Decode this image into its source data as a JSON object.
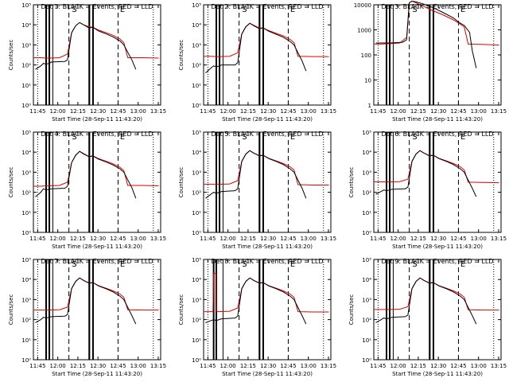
{
  "page": {
    "background": "#ffffff"
  },
  "colors": {
    "events": "#000000",
    "lld": "#e00000",
    "axes": "#000000"
  },
  "xaxis": {
    "label": "Start Time (28-Sep-11 11:43:20)",
    "ticks": [
      "11:45",
      "12:00",
      "12:15",
      "12:30",
      "12:45",
      "13:00",
      "13:15"
    ],
    "range_min": [
      -1.5,
      93.5
    ]
  },
  "markers": {
    "dotted_min": [
      1.7,
      88
    ],
    "thin_solid_min": [
      13,
      40.5
    ],
    "dashed_min": [
      25,
      61.7
    ],
    "labels": [
      {
        "text": "S",
        "min": 29
      },
      {
        "text": "E",
        "min": 65
      }
    ]
  },
  "chart_data": [
    {
      "type": "line",
      "panel": 1,
      "title": "Det 1: BLACK = Events, RED = LLD",
      "ylabel": "Counts/sec",
      "yscale": "log",
      "ylim": [
        1,
        100000
      ],
      "yticks": [
        "10⁰",
        "10¹",
        "10²",
        "10³",
        "10⁴",
        "10⁵"
      ],
      "gaps_min": [
        [
          8.0,
          10.4
        ],
        [
          40.2,
          43.0
        ]
      ],
      "series": [
        {
          "name": "Events",
          "color": "#000000",
          "x": [
            0,
            4,
            6,
            8,
            10.4,
            12,
            22,
            24,
            27,
            30,
            33,
            36,
            40,
            43,
            47,
            53,
            58,
            63,
            66,
            72,
            75
          ],
          "y": [
            60,
            90,
            120,
            110,
            120,
            140,
            150,
            180,
            4000,
            9000,
            13000,
            10000,
            7000,
            7500,
            5000,
            3500,
            2500,
            1600,
            1000,
            180,
            60
          ]
        },
        {
          "name": "LLD",
          "color": "#e00000",
          "x": [
            -1,
            4,
            8,
            10.4,
            18,
            24,
            27,
            30,
            33,
            36,
            40,
            43,
            47,
            53,
            58,
            63,
            66,
            69,
            80,
            92
          ],
          "y": [
            230,
            230,
            220,
            220,
            230,
            350,
            4000,
            9000,
            13000,
            10000,
            8000,
            7500,
            5500,
            4000,
            3000,
            2000,
            1300,
            230,
            230,
            220
          ]
        }
      ]
    },
    {
      "type": "line",
      "panel": 2,
      "title": "Det 2: BLACK = Events, RED = LLD",
      "ylabel": "Counts/sec",
      "yscale": "log",
      "ylim": [
        1,
        100000
      ],
      "yticks": [
        "10⁰",
        "10¹",
        "10²",
        "10³",
        "10⁴",
        "10⁵"
      ],
      "gaps_min": [
        [
          8.0,
          10.4
        ],
        [
          40.2,
          43.0
        ]
      ],
      "series": [
        {
          "name": "Events",
          "color": "#000000",
          "x": [
            0,
            4,
            6,
            8,
            10.4,
            12,
            22,
            24,
            27,
            30,
            33,
            36,
            40,
            43,
            47,
            53,
            58,
            63,
            66,
            72,
            75
          ],
          "y": [
            40,
            70,
            90,
            80,
            90,
            100,
            100,
            130,
            3500,
            8000,
            12000,
            9000,
            6500,
            7000,
            4800,
            3300,
            2400,
            1500,
            1000,
            160,
            50
          ]
        },
        {
          "name": "LLD",
          "color": "#e00000",
          "x": [
            -1,
            4,
            8,
            10.4,
            18,
            24,
            27,
            30,
            33,
            36,
            40,
            43,
            47,
            53,
            58,
            63,
            66,
            69,
            80,
            92
          ],
          "y": [
            270,
            270,
            260,
            260,
            270,
            400,
            3500,
            8000,
            12000,
            9500,
            7000,
            7000,
            5200,
            3700,
            2800,
            1900,
            1300,
            270,
            260,
            260
          ]
        }
      ]
    },
    {
      "type": "line",
      "panel": 3,
      "title": "Det 3: BLACK = Events, RED = LLD",
      "ylabel": "",
      "yscale": "log",
      "ylim": [
        1,
        10000
      ],
      "yticks": [
        "1",
        "10",
        "100",
        "1000",
        "10000"
      ],
      "gaps_min": [
        [
          8.0,
          10.4
        ],
        [
          40.2,
          43.0
        ]
      ],
      "series": [
        {
          "name": "Events",
          "color": "#000000",
          "x": [
            0,
            4,
            8,
            10.4,
            20,
            23,
            25,
            27,
            30,
            35,
            42,
            50,
            58,
            62,
            66,
            70,
            72,
            75
          ],
          "y": [
            300,
            300,
            300,
            300,
            320,
            400,
            12000,
            14000,
            13000,
            11000,
            8000,
            5000,
            3000,
            2000,
            1500,
            800,
            150,
            30
          ]
        },
        {
          "name": "LLD",
          "color": "#e00000",
          "x": [
            -1,
            4,
            8,
            10.4,
            18,
            23,
            25,
            27,
            30,
            35,
            42,
            50,
            58,
            63,
            66,
            69,
            80,
            92
          ],
          "y": [
            270,
            270,
            280,
            280,
            300,
            500,
            12000,
            14000,
            12000,
            9000,
            6000,
            4000,
            2500,
            1700,
            1300,
            270,
            260,
            250
          ]
        }
      ]
    },
    {
      "type": "line",
      "panel": 4,
      "title": "Det 4: BLACK = Events, RED = LLD",
      "ylabel": "Counts/sec",
      "yscale": "log",
      "ylim": [
        1,
        100000
      ],
      "yticks": [
        "10⁰",
        "10¹",
        "10²",
        "10³",
        "10⁴",
        "10⁵"
      ],
      "gaps_min": [
        [
          8.0,
          10.4
        ],
        [
          40.2,
          43.0
        ]
      ],
      "series": [
        {
          "name": "Events",
          "color": "#000000",
          "x": [
            0,
            4,
            6,
            8,
            10.4,
            12,
            22,
            24,
            27,
            30,
            33,
            36,
            40,
            43,
            47,
            53,
            58,
            63,
            66,
            72,
            75
          ],
          "y": [
            60,
            100,
            150,
            130,
            140,
            150,
            160,
            200,
            3000,
            7000,
            11000,
            8000,
            6000,
            6500,
            4500,
            3200,
            2300,
            1500,
            1000,
            170,
            50
          ]
        },
        {
          "name": "LLD",
          "color": "#e00000",
          "x": [
            -1,
            4,
            8,
            10.4,
            18,
            24,
            27,
            30,
            33,
            36,
            40,
            43,
            47,
            53,
            58,
            63,
            66,
            69,
            80,
            92
          ],
          "y": [
            200,
            200,
            210,
            210,
            220,
            320,
            3000,
            7000,
            11000,
            8500,
            6000,
            6500,
            4800,
            3500,
            2600,
            1800,
            1200,
            220,
            220,
            210
          ]
        }
      ]
    },
    {
      "type": "line",
      "panel": 5,
      "title": "Det 5: BLACK = Events, RED = LLD",
      "ylabel": "Counts/sec",
      "yscale": "log",
      "ylim": [
        1,
        100000
      ],
      "yticks": [
        "10⁰",
        "10¹",
        "10²",
        "10³",
        "10⁴",
        "10⁵"
      ],
      "gaps_min": [
        [
          8.0,
          10.4
        ],
        [
          40.2,
          43.0
        ]
      ],
      "series": [
        {
          "name": "Events",
          "color": "#000000",
          "x": [
            0,
            4,
            6,
            8,
            10.4,
            12,
            22,
            24,
            27,
            30,
            33,
            36,
            40,
            43,
            47,
            53,
            58,
            63,
            66,
            72,
            75
          ],
          "y": [
            50,
            80,
            100,
            90,
            100,
            110,
            120,
            150,
            3500,
            8000,
            12000,
            9000,
            6500,
            7000,
            4800,
            3400,
            2400,
            1500,
            1000,
            160,
            50
          ]
        },
        {
          "name": "LLD",
          "color": "#e00000",
          "x": [
            -1,
            4,
            8,
            10.4,
            18,
            24,
            27,
            30,
            33,
            36,
            40,
            43,
            47,
            53,
            58,
            63,
            66,
            69,
            80,
            92
          ],
          "y": [
            250,
            250,
            250,
            250,
            260,
            380,
            3500,
            8000,
            12000,
            9000,
            6800,
            7000,
            5000,
            3600,
            2700,
            1900,
            1300,
            240,
            230,
            230
          ]
        }
      ]
    },
    {
      "type": "line",
      "panel": 6,
      "title": "Det 6: BLACK = Events, RED = LLD",
      "ylabel": "Counts/sec",
      "yscale": "log",
      "ylim": [
        1,
        100000
      ],
      "yticks": [
        "10⁰",
        "10¹",
        "10²",
        "10³",
        "10⁴",
        "10⁵"
      ],
      "gaps_min": [
        [
          8.0,
          10.4
        ],
        [
          40.2,
          43.0
        ]
      ],
      "series": [
        {
          "name": "Events",
          "color": "#000000",
          "x": [
            0,
            4,
            6,
            8,
            10.4,
            12,
            22,
            24,
            27,
            30,
            33,
            36,
            40,
            43,
            47,
            53,
            58,
            63,
            66,
            72,
            75
          ],
          "y": [
            80,
            110,
            130,
            120,
            130,
            140,
            150,
            180,
            3500,
            8000,
            12000,
            9000,
            6500,
            7000,
            4800,
            3400,
            2400,
            1500,
            1000,
            160,
            60
          ]
        },
        {
          "name": "LLD",
          "color": "#e00000",
          "x": [
            -1,
            4,
            8,
            10.4,
            18,
            24,
            27,
            30,
            33,
            36,
            40,
            43,
            47,
            53,
            58,
            63,
            66,
            69,
            80,
            92
          ],
          "y": [
            330,
            330,
            330,
            330,
            340,
            450,
            3500,
            8000,
            12000,
            9000,
            6800,
            7000,
            5000,
            3600,
            2700,
            1900,
            1300,
            320,
            310,
            300
          ]
        }
      ]
    },
    {
      "type": "line",
      "panel": 7,
      "title": "Det 7: BLACK = Events, RED = LLD",
      "ylabel": "Counts/sec",
      "yscale": "log",
      "ylim": [
        1,
        100000
      ],
      "yticks": [
        "10⁰",
        "10¹",
        "10²",
        "10³",
        "10⁴",
        "10⁵"
      ],
      "gaps_min": [
        [
          8.0,
          10.4
        ],
        [
          40.2,
          43.0
        ]
      ],
      "series": [
        {
          "name": "Events",
          "color": "#000000",
          "x": [
            0,
            4,
            6,
            8,
            10.4,
            12,
            22,
            24,
            27,
            30,
            33,
            36,
            40,
            43,
            47,
            53,
            58,
            63,
            66,
            72,
            75
          ],
          "y": [
            70,
            100,
            130,
            120,
            130,
            140,
            150,
            180,
            3500,
            8000,
            12000,
            9000,
            6500,
            7000,
            4800,
            3400,
            2400,
            1500,
            1000,
            160,
            60
          ]
        },
        {
          "name": "LLD",
          "color": "#e00000",
          "x": [
            -1,
            4,
            8,
            10.4,
            18,
            24,
            27,
            30,
            33,
            36,
            40,
            43,
            47,
            53,
            58,
            63,
            66,
            69,
            80,
            92
          ],
          "y": [
            300,
            300,
            300,
            300,
            310,
            420,
            3500,
            8000,
            12000,
            9000,
            6800,
            7000,
            5000,
            3600,
            2700,
            1900,
            1300,
            310,
            300,
            300
          ]
        }
      ]
    },
    {
      "type": "line",
      "panel": 8,
      "title": "Det 8: BLACK = Events, RED = LLD",
      "ylabel": "Counts/sec",
      "yscale": "log",
      "ylim": [
        1,
        100000
      ],
      "yticks": [
        "10⁰",
        "10¹",
        "10²",
        "10³",
        "10⁴",
        "10⁵"
      ],
      "gaps_min": [
        [
          6.0,
          8.0
        ],
        [
          40.2,
          43.0
        ]
      ],
      "series": [
        {
          "name": "Events",
          "color": "#000000",
          "x": [
            0,
            4,
            6,
            8,
            10,
            12,
            22,
            24,
            27,
            30,
            33,
            36,
            40,
            43,
            47,
            53,
            58,
            63,
            66,
            72,
            75
          ],
          "y": [
            70,
            90,
            100,
            90,
            100,
            110,
            120,
            150,
            3500,
            8000,
            12000,
            9000,
            6500,
            7000,
            4800,
            3400,
            2400,
            1500,
            1000,
            160,
            60
          ]
        },
        {
          "name": "LLD",
          "color": "#e00000",
          "x": [
            -1,
            4,
            5.5,
            6.0,
            8.0,
            8.3,
            10,
            18,
            24,
            27,
            30,
            33,
            36,
            40,
            43,
            47,
            53,
            58,
            63,
            66,
            69,
            80,
            92
          ],
          "y": [
            250,
            250,
            250,
            20000,
            20000,
            250,
            250,
            260,
            380,
            3500,
            8000,
            12000,
            9000,
            6800,
            7000,
            5000,
            3600,
            2700,
            1900,
            1300,
            250,
            240,
            240
          ]
        }
      ]
    },
    {
      "type": "line",
      "panel": 9,
      "title": "Det 9: BLACK = Events, RED = LLD",
      "ylabel": "Counts/sec",
      "yscale": "log",
      "ylim": [
        1,
        100000
      ],
      "yticks": [
        "10⁰",
        "10¹",
        "10²",
        "10³",
        "10⁴",
        "10⁵"
      ],
      "gaps_min": [
        [
          8.0,
          10.4
        ],
        [
          40.2,
          43.0
        ]
      ],
      "series": [
        {
          "name": "Events",
          "color": "#000000",
          "x": [
            0,
            4,
            6,
            8,
            10.4,
            12,
            22,
            24,
            27,
            30,
            33,
            36,
            40,
            43,
            47,
            53,
            58,
            63,
            66,
            72,
            75
          ],
          "y": [
            70,
            100,
            120,
            110,
            120,
            130,
            140,
            170,
            3500,
            8000,
            12000,
            9000,
            6500,
            7000,
            4800,
            3400,
            2400,
            1500,
            1000,
            160,
            60
          ]
        },
        {
          "name": "LLD",
          "color": "#e00000",
          "x": [
            -1,
            4,
            8,
            10.4,
            18,
            24,
            27,
            30,
            33,
            36,
            40,
            43,
            47,
            53,
            58,
            63,
            66,
            69,
            80,
            92
          ],
          "y": [
            320,
            320,
            320,
            320,
            330,
            440,
            3500,
            8000,
            12000,
            9000,
            6800,
            7000,
            5000,
            3600,
            2700,
            1900,
            1300,
            310,
            300,
            300
          ]
        }
      ]
    }
  ]
}
